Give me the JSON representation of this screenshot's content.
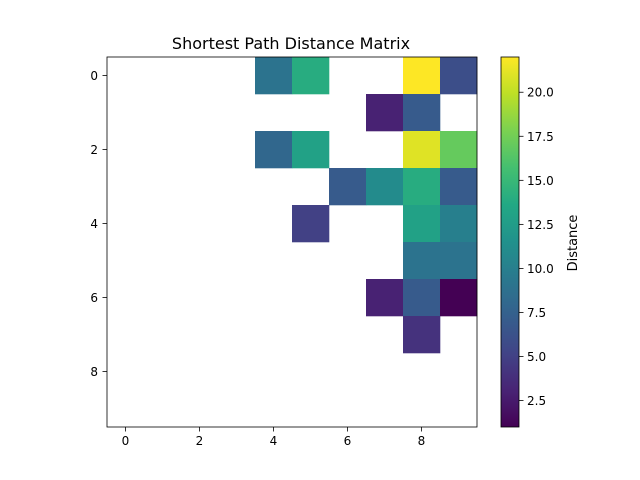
{
  "chart_data": {
    "type": "heatmap",
    "title": "Shortest Path Distance Matrix",
    "xlabel": "",
    "ylabel": "",
    "rows": 10,
    "cols": 10,
    "xticks": [
      0,
      2,
      4,
      6,
      8
    ],
    "yticks": [
      0,
      2,
      4,
      6,
      8
    ],
    "colormap": "viridis",
    "colorbar": {
      "label": "Distance",
      "vmin": 1.0,
      "vmax": 22.0,
      "ticks": [
        2.5,
        5.0,
        7.5,
        10.0,
        12.5,
        15.0,
        17.5,
        20.0
      ]
    },
    "matrix": [
      [
        null,
        null,
        null,
        null,
        9,
        14,
        null,
        null,
        22,
        6
      ],
      [
        null,
        null,
        null,
        null,
        null,
        null,
        null,
        3,
        7,
        null
      ],
      [
        null,
        null,
        null,
        null,
        8,
        13,
        null,
        null,
        21,
        17
      ],
      [
        null,
        null,
        null,
        null,
        null,
        null,
        7,
        11,
        14,
        7
      ],
      [
        null,
        null,
        null,
        null,
        null,
        5,
        null,
        null,
        13,
        10
      ],
      [
        null,
        null,
        null,
        null,
        null,
        null,
        null,
        null,
        9,
        9
      ],
      [
        null,
        null,
        null,
        null,
        null,
        null,
        null,
        3,
        7,
        1
      ],
      [
        null,
        null,
        null,
        null,
        null,
        null,
        null,
        null,
        4,
        null
      ],
      [
        null,
        null,
        null,
        null,
        null,
        null,
        null,
        null,
        null,
        null
      ],
      [
        null,
        null,
        null,
        null,
        null,
        null,
        null,
        null,
        null,
        null
      ]
    ]
  }
}
